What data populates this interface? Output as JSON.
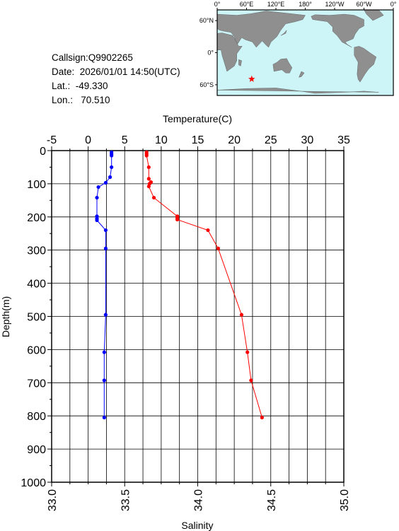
{
  "info": {
    "callsign": "Callsign:Q9902265",
    "date": "Date:  2026/01/01 14:50(UTC)",
    "lat": "Lat.:  -49.330",
    "lon": "Lon.:   70.510"
  },
  "map": {
    "lon_labels": [
      "0°",
      "60°E",
      "120°E",
      "180°",
      "120°W",
      "60°W",
      "0°"
    ],
    "lat_labels": [
      "60°N",
      "0°",
      "60°S"
    ],
    "station": {
      "lon": 70.51,
      "lat": -49.33
    },
    "colors": {
      "ocean": "#cdf5f8",
      "land": "#8f8f8f",
      "marker": "#ff0000"
    }
  },
  "chart_data": {
    "type": "line",
    "xlabel_top": "Temperature(C)",
    "xlabel_bottom": "Salinity",
    "ylabel": "Depth(m)",
    "temperature_axis": {
      "range": [
        -5,
        35
      ],
      "ticks": [
        "-5",
        "0",
        "5",
        "10",
        "15",
        "20",
        "25",
        "30",
        "35"
      ]
    },
    "salinity_axis": {
      "range": [
        33.0,
        35.0
      ],
      "ticks": [
        "33.0",
        "33.5",
        "34.0",
        "34.5",
        "35.0"
      ]
    },
    "depth_axis": {
      "range": [
        0,
        1000
      ],
      "inverted": true,
      "ticks": [
        "0",
        "100",
        "200",
        "300",
        "400",
        "500",
        "600",
        "700",
        "800",
        "900",
        "1000"
      ]
    },
    "grid": true,
    "series": [
      {
        "quantity": "temperature",
        "color": "#ff0000",
        "points": [
          {
            "depth": 5,
            "value": 8.0
          },
          {
            "depth": 10,
            "value": 8.0
          },
          {
            "depth": 15,
            "value": 8.0
          },
          {
            "depth": 50,
            "value": 8.3
          },
          {
            "depth": 85,
            "value": 8.3
          },
          {
            "depth": 95,
            "value": 8.6
          },
          {
            "depth": 100,
            "value": 8.4
          },
          {
            "depth": 108,
            "value": 8.3
          },
          {
            "depth": 142,
            "value": 9.0
          },
          {
            "depth": 198,
            "value": 12.2
          },
          {
            "depth": 203,
            "value": 12.2
          },
          {
            "depth": 208,
            "value": 12.2
          },
          {
            "depth": 240,
            "value": 16.4
          },
          {
            "depth": 295,
            "value": 17.8
          },
          {
            "depth": 495,
            "value": 21.0
          },
          {
            "depth": 608,
            "value": 21.8
          },
          {
            "depth": 693,
            "value": 22.3
          },
          {
            "depth": 805,
            "value": 23.8
          }
        ]
      },
      {
        "quantity": "salinity",
        "color": "#0000ff",
        "points": [
          {
            "depth": 5,
            "value": 33.41
          },
          {
            "depth": 10,
            "value": 33.41
          },
          {
            "depth": 15,
            "value": 33.41
          },
          {
            "depth": 50,
            "value": 33.41
          },
          {
            "depth": 80,
            "value": 33.4
          },
          {
            "depth": 97,
            "value": 33.37
          },
          {
            "depth": 110,
            "value": 33.32
          },
          {
            "depth": 142,
            "value": 33.31
          },
          {
            "depth": 198,
            "value": 33.31
          },
          {
            "depth": 205,
            "value": 33.31
          },
          {
            "depth": 210,
            "value": 33.31
          },
          {
            "depth": 240,
            "value": 33.37
          },
          {
            "depth": 295,
            "value": 33.37
          },
          {
            "depth": 495,
            "value": 33.37
          },
          {
            "depth": 608,
            "value": 33.36
          },
          {
            "depth": 693,
            "value": 33.36
          },
          {
            "depth": 805,
            "value": 33.36
          }
        ]
      }
    ]
  }
}
